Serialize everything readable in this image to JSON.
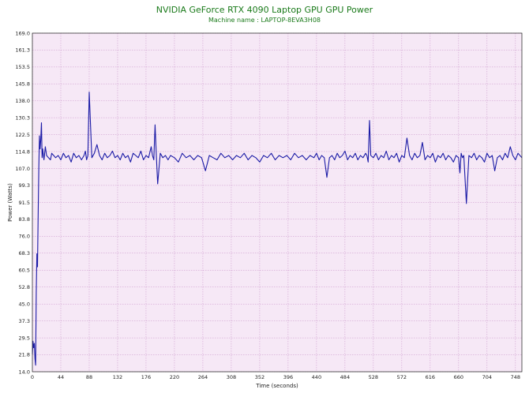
{
  "chart_data": {
    "type": "line",
    "title": "NVIDIA GeForce RTX 4090 Laptop GPU GPU Power",
    "subtitle": "Machine name : LAPTOP-8EVA3H08",
    "xlabel": "Time (seconds)",
    "ylabel": "Power (Watts)",
    "xlim": [
      0,
      758
    ],
    "ylim": [
      14.0,
      169.0
    ],
    "x_ticks": [
      "0",
      "44",
      "88",
      "132",
      "176",
      "220",
      "264",
      "308",
      "352",
      "396",
      "440",
      "484",
      "528",
      "572",
      "616",
      "660",
      "704",
      "748"
    ],
    "y_ticks": [
      "169.0",
      "161.3",
      "153.5",
      "145.8",
      "138.0",
      "130.3",
      "122.5",
      "114.8",
      "107.0",
      "99.3",
      "91.5",
      "83.8",
      "76.0",
      "68.3",
      "60.5",
      "52.8",
      "45.0",
      "37.3",
      "29.5",
      "21.8",
      "14.0"
    ],
    "grid": true,
    "colors": {
      "line": "#1a1aa6",
      "plot_bg": "#f6e8f6",
      "grid": "#c890c8",
      "text": "#1a7a1a"
    },
    "series": [
      {
        "x": [
          0,
          1,
          2,
          3,
          4,
          5,
          6,
          7,
          8,
          9,
          10,
          11,
          12,
          13,
          14,
          15,
          16,
          18,
          20,
          22,
          25,
          28,
          30,
          33,
          36,
          40,
          44,
          48,
          52,
          56,
          60,
          64,
          68,
          72,
          76,
          80,
          82,
          84,
          86,
          88,
          92,
          96,
          100,
          104,
          108,
          112,
          116,
          120,
          124,
          128,
          132,
          136,
          140,
          144,
          148,
          152,
          156,
          160,
          164,
          168,
          172,
          176,
          180,
          184,
          186,
          188,
          190,
          192,
          194,
          198,
          202,
          206,
          210,
          214,
          220,
          226,
          232,
          238,
          244,
          250,
          256,
          262,
          268,
          274,
          280,
          286,
          292,
          298,
          304,
          310,
          316,
          322,
          328,
          334,
          340,
          346,
          352,
          358,
          364,
          370,
          376,
          382,
          388,
          394,
          400,
          406,
          412,
          418,
          424,
          430,
          436,
          440,
          444,
          448,
          452,
          456,
          460,
          464,
          468,
          472,
          476,
          480,
          484,
          488,
          492,
          496,
          500,
          504,
          508,
          512,
          516,
          518,
          520,
          522,
          524,
          528,
          532,
          536,
          540,
          544,
          548,
          552,
          556,
          560,
          564,
          568,
          572,
          576,
          580,
          584,
          588,
          592,
          596,
          600,
          604,
          608,
          612,
          616,
          620,
          624,
          628,
          632,
          636,
          640,
          644,
          648,
          652,
          656,
          660,
          662,
          664,
          666,
          668,
          672,
          676,
          680,
          684,
          688,
          692,
          696,
          700,
          704,
          708,
          712,
          716,
          720,
          724,
          728,
          732,
          736,
          740,
          744,
          748,
          752,
          758
        ],
        "values": [
          22,
          28,
          25,
          27,
          20,
          17,
          50,
          68,
          62,
          88,
          108,
          122,
          116,
          120,
          128,
          112,
          116,
          111,
          117,
          113,
          112,
          111,
          114,
          113,
          112,
          113,
          111,
          114,
          112,
          113,
          110,
          114,
          112,
          113,
          111,
          113,
          115,
          111,
          113,
          142,
          112,
          114,
          118,
          113,
          111,
          114,
          112,
          113,
          115,
          112,
          113,
          111,
          114,
          112,
          113,
          110,
          114,
          113,
          112,
          115,
          111,
          113,
          112,
          117,
          113,
          111,
          127,
          113,
          100,
          114,
          112,
          113,
          111,
          113,
          112,
          110,
          114,
          112,
          113,
          111,
          113,
          112,
          106,
          113,
          112,
          111,
          114,
          112,
          113,
          111,
          113,
          112,
          114,
          111,
          113,
          112,
          110,
          113,
          112,
          114,
          111,
          113,
          112,
          113,
          111,
          114,
          112,
          113,
          111,
          113,
          112,
          114,
          111,
          113,
          112,
          103,
          112,
          113,
          111,
          114,
          112,
          113,
          115,
          111,
          113,
          112,
          114,
          111,
          113,
          112,
          114,
          113,
          110,
          129,
          113,
          112,
          114,
          111,
          113,
          112,
          115,
          111,
          113,
          112,
          114,
          110,
          113,
          112,
          121,
          113,
          111,
          114,
          112,
          113,
          119,
          111,
          113,
          112,
          114,
          110,
          113,
          112,
          114,
          111,
          113,
          112,
          110,
          113,
          112,
          105,
          114,
          112,
          113,
          91,
          113,
          112,
          114,
          111,
          113,
          112,
          110,
          114,
          112,
          113,
          106,
          112,
          113,
          111,
          114,
          112,
          117,
          113,
          111,
          114,
          112
        ]
      }
    ]
  }
}
